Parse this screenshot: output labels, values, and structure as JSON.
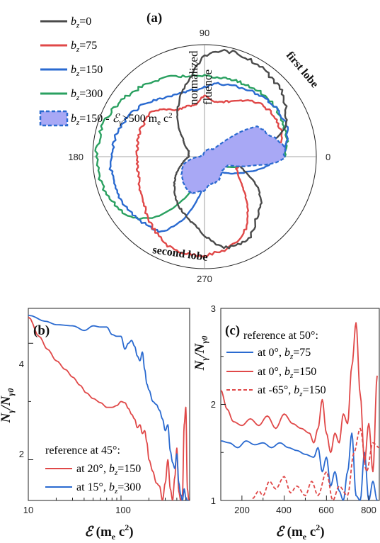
{
  "chart_data": [
    {
      "panel": "(a)",
      "type": "polar",
      "angle_ticks": [
        "90",
        "180",
        "0",
        "270"
      ],
      "radial_label": "normalized fluence",
      "annotations": [
        "first lobe",
        "second lobe"
      ],
      "legend": [
        "b_z=0",
        "b_z=75",
        "b_z=150",
        "b_z=300",
        "b_z=150 - ℰγ>500 m_e c²"
      ],
      "legend_position": "top-left",
      "series": [
        {
          "name": "b_z=0",
          "color": "#4a4a4a",
          "angles_deg": [
            0,
            20,
            40,
            60,
            80,
            90,
            100,
            120,
            140,
            160,
            180,
            200,
            220,
            240,
            260,
            270,
            280,
            290,
            300,
            310,
            320,
            330,
            340,
            350
          ],
          "r": [
            0.35,
            0.78,
            0.9,
            0.95,
            0.97,
            0.9,
            0.72,
            0.48,
            0.25,
            0.15,
            0.14,
            0.22,
            0.35,
            0.48,
            0.6,
            0.7,
            0.82,
            0.85,
            0.82,
            0.72,
            0.66,
            0.55,
            0.38,
            0.28
          ]
        },
        {
          "name": "b_z=75",
          "color": "#e04848",
          "angles_deg": [
            0,
            10,
            20,
            30,
            40,
            50,
            60,
            70,
            80,
            90,
            100,
            120,
            140,
            160,
            180,
            200,
            220,
            240,
            250,
            260,
            270,
            280,
            290,
            300,
            310,
            320,
            330,
            340,
            350
          ],
          "r": [
            0.6,
            0.7,
            0.72,
            0.72,
            0.7,
            0.65,
            0.57,
            0.52,
            0.5,
            0.55,
            0.47,
            0.48,
            0.62,
            0.62,
            0.6,
            0.62,
            0.7,
            0.82,
            0.87,
            0.88,
            0.88,
            0.86,
            0.82,
            0.74,
            0.6,
            0.45,
            0.35,
            0.3,
            0.35
          ]
        },
        {
          "name": "b_z=150",
          "color": "#2a6ad0",
          "angles_deg": [
            0,
            10,
            20,
            30,
            40,
            50,
            60,
            70,
            80,
            90,
            100,
            120,
            140,
            160,
            180,
            200,
            220,
            240,
            250,
            260,
            270,
            280,
            290,
            300,
            310,
            320,
            330,
            340,
            350
          ],
          "r": [
            0.68,
            0.75,
            0.78,
            0.78,
            0.76,
            0.73,
            0.7,
            0.68,
            0.66,
            0.62,
            0.6,
            0.62,
            0.72,
            0.8,
            0.84,
            0.85,
            0.82,
            0.78,
            0.62,
            0.4,
            0.22,
            0.18,
            0.15,
            0.15,
            0.18,
            0.22,
            0.3,
            0.4,
            0.55
          ]
        },
        {
          "name": "b_z=300",
          "color": "#2aa060",
          "angles_deg": [
            0,
            10,
            20,
            30,
            40,
            50,
            60,
            70,
            80,
            90,
            100,
            110,
            120,
            140,
            160,
            180,
            200,
            220,
            230,
            240,
            250,
            260,
            270,
            290,
            310,
            330,
            350
          ],
          "r": [
            0.72,
            0.75,
            0.76,
            0.77,
            0.77,
            0.76,
            0.74,
            0.73,
            0.72,
            0.72,
            0.73,
            0.76,
            0.8,
            0.87,
            0.95,
            0.97,
            0.95,
            0.85,
            0.72,
            0.5,
            0.3,
            0.18,
            0.15,
            0.12,
            0.12,
            0.15,
            0.4
          ]
        },
        {
          "name": "b_z=150 - ℰγ>500 m_e c²",
          "color": "#2a6ad0",
          "fill": "#a8a8f5",
          "angles_deg": [
            0,
            5,
            10,
            20,
            30,
            35,
            40,
            90,
            120,
            150,
            180,
            200,
            230,
            250,
            260,
            270,
            280,
            300,
            320,
            340,
            350,
            355
          ],
          "r": [
            0.72,
            0.72,
            0.7,
            0.6,
            0.55,
            0.38,
            0.1,
            0.04,
            0.02,
            0.02,
            0.04,
            0.2,
            0.3,
            0.35,
            0.32,
            0.3,
            0.25,
            0.25,
            0.2,
            0.22,
            0.45,
            0.65
          ]
        }
      ]
    },
    {
      "panel": "(b)",
      "type": "line",
      "x_scale": "log",
      "xlim": [
        10,
        550
      ],
      "ylim": [
        1.3,
        4.6
      ],
      "x_ticks": [
        "10",
        "100"
      ],
      "y_ticks": [
        "2",
        "4"
      ],
      "xlabel": "ℰ (m_e c²)",
      "ylabel": "N_γ/N_γ0",
      "legend_title": "reference at 45°:",
      "legend_position": "bottom-left",
      "series": [
        {
          "name": "at 20°, b_z=150",
          "color": "#e04848",
          "x": [
            10,
            13,
            16,
            20,
            25,
            30,
            36,
            42,
            50,
            60,
            70,
            80,
            90,
            100,
            110,
            120,
            130,
            140,
            150,
            160,
            170,
            180,
            190,
            200,
            220,
            240,
            260,
            280,
            300,
            320,
            340,
            360,
            380,
            400,
            420,
            440,
            460,
            480,
            500,
            520,
            540
          ],
          "y": [
            4.45,
            4.12,
            3.9,
            3.7,
            3.55,
            3.42,
            3.28,
            3.15,
            3.05,
            2.98,
            2.9,
            2.9,
            2.93,
            3.0,
            2.98,
            2.88,
            2.78,
            2.7,
            2.55,
            2.6,
            2.45,
            2.5,
            2.3,
            2.0,
            1.8,
            1.6,
            1.55,
            1.3,
            1.6,
            2.0,
            1.5,
            1.3,
            1.7,
            2.2,
            1.45,
            1.3,
            1.4,
            2.6,
            2.9,
            1.5,
            1.3
          ]
        },
        {
          "name": "at 15°, b_z=300",
          "color": "#2a6ad0",
          "x": [
            10,
            15,
            20,
            30,
            40,
            50,
            60,
            70,
            80,
            90,
            100,
            110,
            120,
            130,
            140,
            150,
            160,
            170,
            180,
            190,
            200,
            220,
            240,
            260,
            280,
            300,
            320,
            340,
            360,
            380,
            400,
            420,
            440,
            460,
            480,
            500,
            520,
            540
          ],
          "y": [
            4.48,
            4.38,
            4.32,
            4.3,
            4.22,
            4.3,
            4.28,
            4.28,
            4.15,
            4.12,
            4.12,
            3.9,
            4.0,
            4.05,
            3.95,
            3.78,
            3.7,
            3.85,
            3.55,
            3.3,
            3.2,
            3.0,
            2.95,
            2.85,
            2.7,
            2.5,
            2.6,
            2.15,
            1.95,
            1.85,
            2.1,
            1.6,
            1.4,
            1.3,
            1.5,
            1.35,
            1.3,
            1.3
          ]
        }
      ]
    },
    {
      "panel": "(c)",
      "type": "line",
      "xlim": [
        100,
        850
      ],
      "ylim": [
        1,
        3
      ],
      "x_ticks": [
        "200",
        "400",
        "600",
        "800"
      ],
      "y_ticks": [
        "1",
        "2",
        "3"
      ],
      "xlabel": "ℰ (m_e c²)",
      "ylabel": "N_γ/N_γ0",
      "legend_title": "reference at 50°:",
      "legend_position": "top-left",
      "series": [
        {
          "name": "at 0°, b_z=75",
          "color": "#2a6ad0",
          "dash": false,
          "x": [
            100,
            140,
            180,
            220,
            260,
            300,
            340,
            380,
            420,
            460,
            500,
            540,
            560,
            580,
            600,
            620,
            640,
            660,
            680,
            700,
            720,
            740,
            760,
            780,
            800,
            820,
            840
          ],
          "y": [
            1.62,
            1.6,
            1.55,
            1.62,
            1.58,
            1.6,
            1.55,
            1.6,
            1.55,
            1.52,
            1.48,
            1.45,
            1.55,
            1.3,
            1.45,
            1.15,
            1.3,
            1.1,
            1.0,
            1.3,
            1.7,
            1.05,
            1.0,
            1.5,
            1.0,
            1.2,
            1.0
          ]
        },
        {
          "name": "at 0°, b_z=150",
          "color": "#e04848",
          "dash": false,
          "x": [
            100,
            130,
            160,
            200,
            240,
            280,
            320,
            360,
            400,
            440,
            480,
            520,
            540,
            560,
            580,
            600,
            620,
            640,
            660,
            680,
            700,
            720,
            740,
            760,
            780,
            800,
            820,
            840
          ],
          "y": [
            2.15,
            1.95,
            1.82,
            1.78,
            1.85,
            1.78,
            1.88,
            1.75,
            1.9,
            1.8,
            1.75,
            1.7,
            1.6,
            1.75,
            2.05,
            1.7,
            1.5,
            1.7,
            1.6,
            1.9,
            1.8,
            2.4,
            2.85,
            2.1,
            1.4,
            1.8,
            1.3,
            2.3
          ]
        },
        {
          "name": "at -65°, b_z=150",
          "color": "#e04848",
          "dash": true,
          "x": [
            250,
            280,
            300,
            330,
            360,
            400,
            430,
            460,
            500,
            530,
            560,
            600,
            630,
            660,
            700,
            730,
            760,
            790,
            820,
            850
          ],
          "y": [
            1.02,
            1.1,
            1.05,
            1.2,
            1.12,
            1.25,
            1.08,
            1.15,
            1.05,
            1.2,
            1.05,
            1.3,
            1.0,
            1.15,
            1.05,
            1.5,
            1.75,
            1.3,
            1.6,
            1.55
          ]
        }
      ]
    }
  ]
}
